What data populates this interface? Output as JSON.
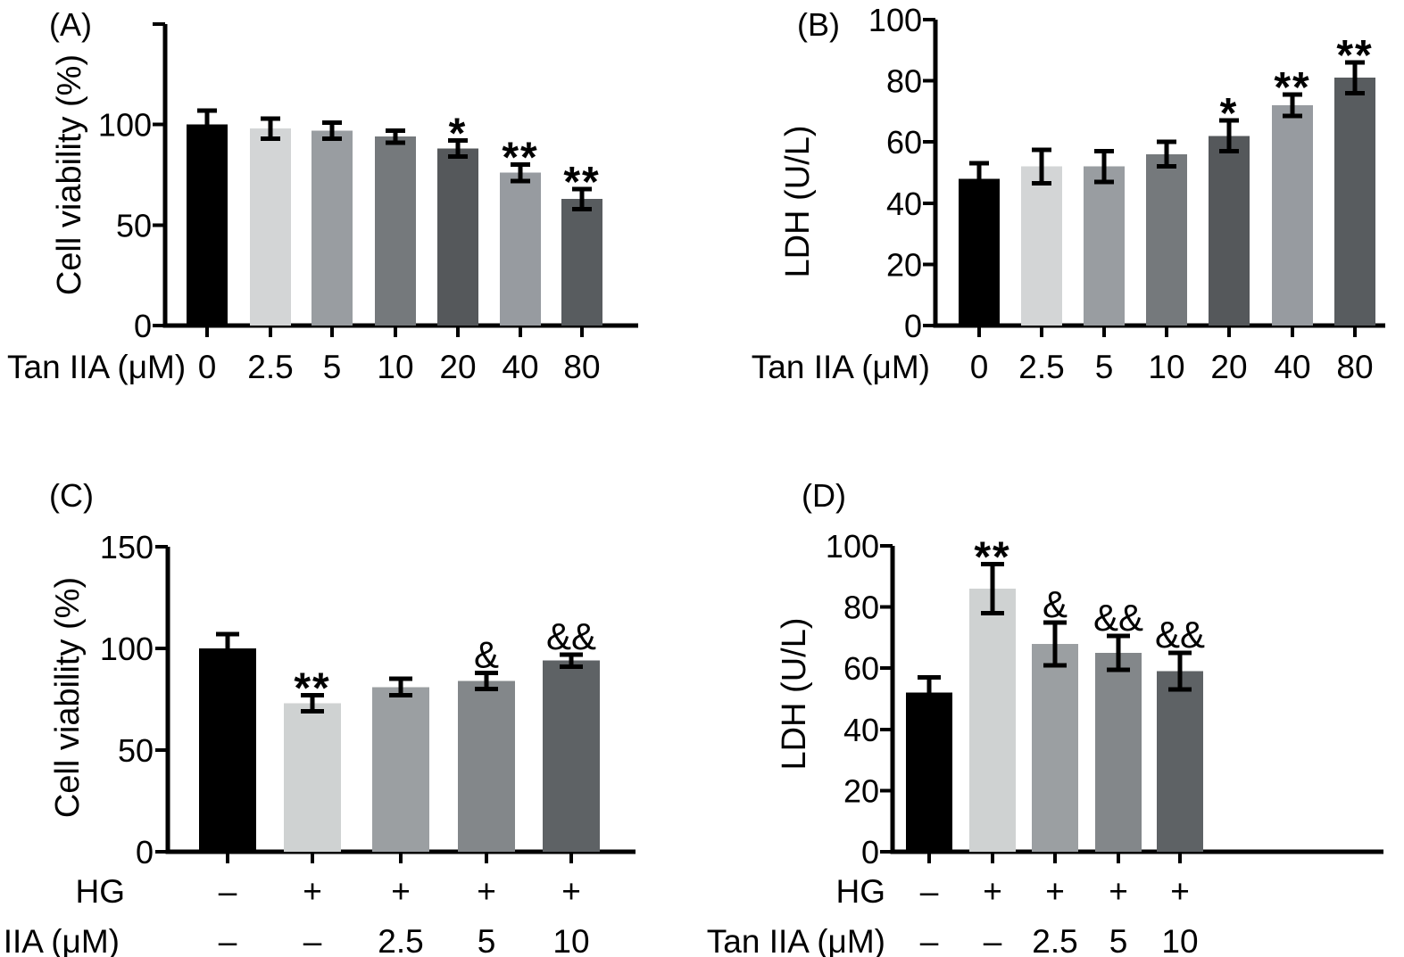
{
  "background": "#ffffff",
  "ink": "#000000",
  "chart_data": [
    {
      "panel_label": "(A)",
      "type": "bar",
      "title": "",
      "ylabel": "Cell viability (%)",
      "xlabel": "Tan IIA (μM)",
      "categories": [
        "0",
        "2.5",
        "5",
        "10",
        "20",
        "40",
        "80"
      ],
      "values": [
        100,
        98,
        97,
        94,
        88,
        76,
        63
      ],
      "errors": [
        7,
        5,
        4,
        3,
        4,
        4,
        5
      ],
      "significance": [
        "",
        "",
        "",
        "",
        "*",
        "**",
        "**"
      ],
      "ylim": [
        0,
        150
      ],
      "yticks": [
        0,
        50,
        100
      ],
      "grid": false,
      "legend": null,
      "bar_colors": [
        "#000000",
        "#d3d5d6",
        "#999da1",
        "#75797c",
        "#55585b",
        "#979ba0",
        "#585c5f"
      ],
      "x_rows": [
        {
          "label": "Tan IIA (μM)",
          "values": [
            "0",
            "2.5",
            "5",
            "10",
            "20",
            "40",
            "80"
          ]
        }
      ]
    },
    {
      "panel_label": "(B)",
      "type": "bar",
      "title": "",
      "ylabel": "LDH (U/L)",
      "xlabel": "Tan IIA (μM)",
      "categories": [
        "0",
        "2.5",
        "5",
        "10",
        "20",
        "40",
        "80"
      ],
      "values": [
        48,
        52,
        52,
        56,
        62,
        72,
        81
      ],
      "errors": [
        5,
        5.5,
        5,
        4,
        5,
        3.5,
        5
      ],
      "significance": [
        "",
        "",
        "",
        "",
        "*",
        "**",
        "**"
      ],
      "ylim": [
        0,
        100
      ],
      "yticks": [
        0,
        20,
        40,
        60,
        80,
        100
      ],
      "grid": false,
      "legend": null,
      "bar_colors": [
        "#000000",
        "#d3d5d6",
        "#999da1",
        "#75797c",
        "#55585b",
        "#979ba0",
        "#585c5f"
      ],
      "x_rows": [
        {
          "label": "Tan IIA (μM)",
          "values": [
            "0",
            "2.5",
            "5",
            "10",
            "20",
            "40",
            "80"
          ]
        }
      ]
    },
    {
      "panel_label": "(C)",
      "type": "bar",
      "title": "",
      "ylabel": "Cell viability (%)",
      "xlabel": "HG / Tan IIA (μM)",
      "categories": [
        "HG– Tan–",
        "HG+ Tan–",
        "HG+ Tan 2.5",
        "HG+ Tan 5",
        "HG+ Tan 10"
      ],
      "values": [
        100,
        73,
        81,
        84,
        94
      ],
      "errors": [
        7,
        4,
        4,
        4,
        3
      ],
      "significance": [
        "",
        "**",
        "",
        "&",
        "&&"
      ],
      "ylim": [
        0,
        150
      ],
      "yticks": [
        0,
        50,
        100,
        150
      ],
      "grid": false,
      "legend": null,
      "bar_colors": [
        "#000000",
        "#cfd2d2",
        "#9b9fa2",
        "#83878a",
        "#5e6265"
      ],
      "x_rows": [
        {
          "label": "HG",
          "values": [
            "–",
            "+",
            "+",
            "+",
            "+"
          ]
        },
        {
          "label": "Tan IIA (μM)",
          "values": [
            "–",
            "–",
            "2.5",
            "5",
            "10"
          ]
        }
      ]
    },
    {
      "panel_label": "(D)",
      "type": "bar",
      "title": "",
      "ylabel": "LDH (U/L)",
      "xlabel": "HG / Tan IIA (μM)",
      "categories": [
        "HG– Tan–",
        "HG+ Tan–",
        "HG+ Tan 2.5",
        "HG+ Tan 5",
        "HG+ Tan 10"
      ],
      "values": [
        52,
        86,
        68,
        65,
        59
      ],
      "errors": [
        5,
        8,
        7,
        5.5,
        6
      ],
      "significance": [
        "",
        "**",
        "&",
        "&&",
        "&&"
      ],
      "ylim": [
        0,
        100
      ],
      "yticks": [
        0,
        20,
        40,
        60,
        80,
        100
      ],
      "grid": false,
      "legend": null,
      "bar_colors": [
        "#000000",
        "#cfd2d2",
        "#9b9fa2",
        "#83878a",
        "#5e6265"
      ],
      "x_rows": [
        {
          "label": "HG",
          "values": [
            "–",
            "+",
            "+",
            "+",
            "+"
          ]
        },
        {
          "label": "Tan IIA (μM)",
          "values": [
            "–",
            "–",
            "2.5",
            "5",
            "10"
          ]
        }
      ]
    }
  ]
}
